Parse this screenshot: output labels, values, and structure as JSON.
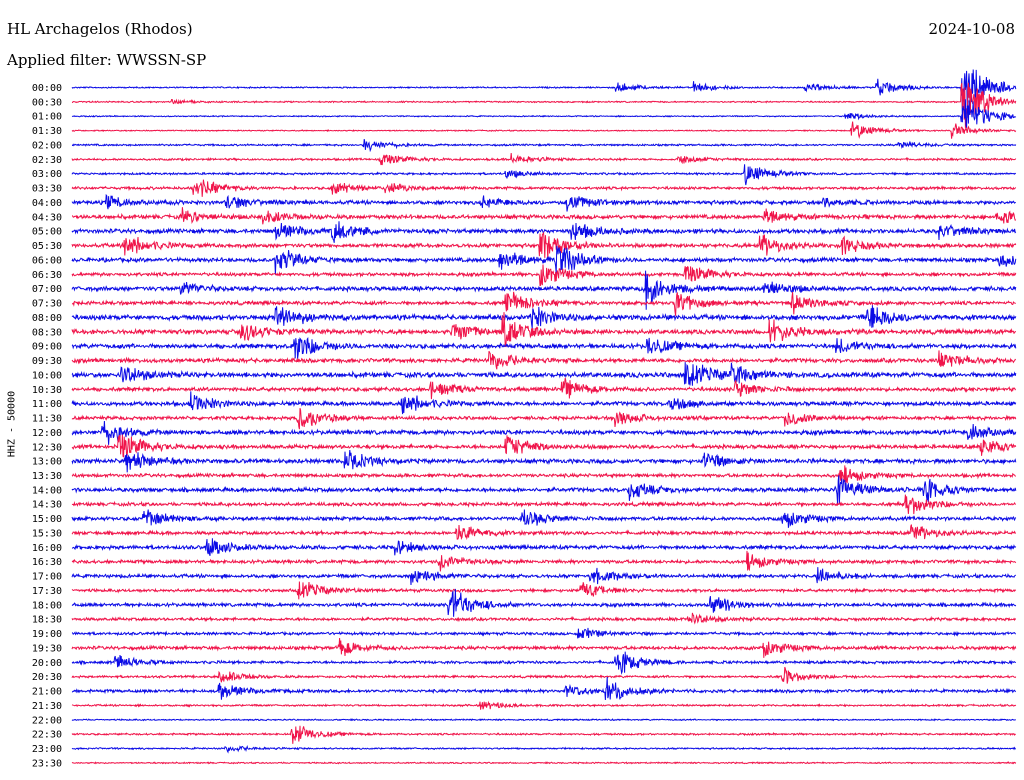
{
  "header": {
    "station": "HL Archagelos (Rhodos)",
    "filter": "Applied filter: WWSSN-SP",
    "date": "2024-10-08"
  },
  "colors": {
    "even_trace": "#0b0be6",
    "odd_trace": "#f0144a",
    "text": "#000000"
  },
  "chart_data": {
    "type": "line",
    "title": "",
    "ylabel": "HHZ - 50000",
    "xlabel": "",
    "time_labels": [
      "00:00",
      "00:30",
      "01:00",
      "01:30",
      "02:00",
      "02:30",
      "03:00",
      "03:30",
      "04:00",
      "04:30",
      "05:00",
      "05:30",
      "06:00",
      "06:30",
      "07:00",
      "07:30",
      "08:00",
      "08:30",
      "09:00",
      "09:30",
      "10:00",
      "10:30",
      "11:00",
      "11:30",
      "12:00",
      "12:30",
      "13:00",
      "13:30",
      "14:00",
      "14:30",
      "15:00",
      "15:30",
      "16:00",
      "16:30",
      "17:00",
      "17:30",
      "18:00",
      "18:30",
      "19:00",
      "19:30",
      "20:00",
      "20:30",
      "21:00",
      "21:30",
      "22:00",
      "22:30",
      "23:00",
      "23:30"
    ],
    "minutes_per_line": 30,
    "noise_level": [
      0.6,
      0.6,
      0.5,
      0.5,
      0.8,
      0.9,
      0.9,
      1.2,
      1.7,
      1.8,
      1.9,
      1.7,
      1.8,
      1.5,
      1.9,
      1.6,
      2.2,
      2.0,
      2.0,
      1.8,
      2.2,
      1.7,
      1.8,
      1.5,
      1.9,
      1.7,
      1.9,
      1.5,
      1.8,
      1.5,
      1.6,
      1.5,
      1.7,
      1.5,
      1.5,
      1.3,
      1.5,
      1.3,
      1.2,
      1.5,
      1.2,
      1.0,
      1.3,
      0.8,
      0.6,
      0.8,
      0.7,
      0.6
    ],
    "events": [
      {
        "line": 0,
        "minute": 17.3,
        "amplitude": 6
      },
      {
        "line": 0,
        "minute": 19.8,
        "amplitude": 6
      },
      {
        "line": 0,
        "minute": 23.3,
        "amplitude": 7
      },
      {
        "line": 0,
        "minute": 25.6,
        "amplitude": 11
      },
      {
        "line": 0,
        "minute": 28.3,
        "amplitude": 45
      },
      {
        "line": 1,
        "minute": 28.3,
        "amplitude": 40
      },
      {
        "line": 1,
        "minute": 3.2,
        "amplitude": 3
      },
      {
        "line": 2,
        "minute": 24.6,
        "amplitude": 5
      },
      {
        "line": 2,
        "minute": 28.3,
        "amplitude": 30
      },
      {
        "line": 3,
        "minute": 24.8,
        "amplitude": 11
      },
      {
        "line": 3,
        "minute": 28.0,
        "amplitude": 8
      },
      {
        "line": 4,
        "minute": 9.3,
        "amplitude": 8
      },
      {
        "line": 4,
        "minute": 26.3,
        "amplitude": 5
      },
      {
        "line": 5,
        "minute": 9.8,
        "amplitude": 9
      },
      {
        "line": 5,
        "minute": 14.0,
        "amplitude": 6
      },
      {
        "line": 5,
        "minute": 19.3,
        "amplitude": 5
      },
      {
        "line": 6,
        "minute": 13.8,
        "amplitude": 5
      },
      {
        "line": 6,
        "minute": 21.4,
        "amplitude": 14
      },
      {
        "line": 7,
        "minute": 3.9,
        "amplitude": 14
      },
      {
        "line": 7,
        "minute": 8.3,
        "amplitude": 8
      },
      {
        "line": 7,
        "minute": 10.0,
        "amplitude": 6
      },
      {
        "line": 8,
        "minute": 1.1,
        "amplitude": 8
      },
      {
        "line": 8,
        "minute": 4.9,
        "amplitude": 9
      },
      {
        "line": 8,
        "minute": 13.0,
        "amplitude": 7
      },
      {
        "line": 8,
        "minute": 15.7,
        "amplitude": 11
      },
      {
        "line": 8,
        "minute": 23.9,
        "amplitude": 6
      },
      {
        "line": 9,
        "minute": 3.5,
        "amplitude": 8
      },
      {
        "line": 9,
        "minute": 6.1,
        "amplitude": 8
      },
      {
        "line": 9,
        "minute": 22.0,
        "amplitude": 10
      },
      {
        "line": 9,
        "minute": 29.4,
        "amplitude": 9
      },
      {
        "line": 10,
        "minute": 6.5,
        "amplitude": 10
      },
      {
        "line": 10,
        "minute": 8.3,
        "amplitude": 12
      },
      {
        "line": 10,
        "minute": 15.9,
        "amplitude": 14
      },
      {
        "line": 10,
        "minute": 27.6,
        "amplitude": 9
      },
      {
        "line": 11,
        "minute": 1.7,
        "amplitude": 14
      },
      {
        "line": 11,
        "minute": 14.9,
        "amplitude": 18
      },
      {
        "line": 11,
        "minute": 21.9,
        "amplitude": 13
      },
      {
        "line": 11,
        "minute": 24.5,
        "amplitude": 10
      },
      {
        "line": 12,
        "minute": 6.5,
        "amplitude": 16
      },
      {
        "line": 12,
        "minute": 13.6,
        "amplitude": 16
      },
      {
        "line": 12,
        "minute": 15.4,
        "amplitude": 22
      },
      {
        "line": 12,
        "minute": 29.5,
        "amplitude": 9
      },
      {
        "line": 13,
        "minute": 14.9,
        "amplitude": 16
      },
      {
        "line": 13,
        "minute": 19.5,
        "amplitude": 14
      },
      {
        "line": 14,
        "minute": 3.5,
        "amplitude": 8
      },
      {
        "line": 14,
        "minute": 18.2,
        "amplitude": 22
      },
      {
        "line": 14,
        "minute": 22.0,
        "amplitude": 12
      },
      {
        "line": 15,
        "minute": 13.8,
        "amplitude": 16
      },
      {
        "line": 15,
        "minute": 19.2,
        "amplitude": 14
      },
      {
        "line": 15,
        "minute": 22.9,
        "amplitude": 12
      },
      {
        "line": 16,
        "minute": 6.5,
        "amplitude": 16
      },
      {
        "line": 16,
        "minute": 14.6,
        "amplitude": 14
      },
      {
        "line": 16,
        "minute": 25.3,
        "amplitude": 18
      },
      {
        "line": 17,
        "minute": 5.4,
        "amplitude": 12
      },
      {
        "line": 17,
        "minute": 12.1,
        "amplitude": 14
      },
      {
        "line": 17,
        "minute": 13.7,
        "amplitude": 18
      },
      {
        "line": 17,
        "minute": 22.2,
        "amplitude": 16
      },
      {
        "line": 18,
        "minute": 7.1,
        "amplitude": 18
      },
      {
        "line": 18,
        "minute": 18.3,
        "amplitude": 12
      },
      {
        "line": 18,
        "minute": 24.3,
        "amplitude": 9
      },
      {
        "line": 19,
        "minute": 13.3,
        "amplitude": 12
      },
      {
        "line": 19,
        "minute": 27.6,
        "amplitude": 11
      },
      {
        "line": 20,
        "minute": 19.5,
        "amplitude": 22
      },
      {
        "line": 20,
        "minute": 1.6,
        "amplitude": 12
      },
      {
        "line": 20,
        "minute": 21.0,
        "amplitude": 10
      },
      {
        "line": 21,
        "minute": 11.4,
        "amplitude": 11
      },
      {
        "line": 21,
        "minute": 15.6,
        "amplitude": 12
      },
      {
        "line": 21,
        "minute": 21.1,
        "amplitude": 10
      },
      {
        "line": 22,
        "minute": 3.8,
        "amplitude": 12
      },
      {
        "line": 22,
        "minute": 10.5,
        "amplitude": 14
      },
      {
        "line": 22,
        "minute": 19.0,
        "amplitude": 8
      },
      {
        "line": 23,
        "minute": 7.2,
        "amplitude": 16
      },
      {
        "line": 23,
        "minute": 17.3,
        "amplitude": 10
      },
      {
        "line": 23,
        "minute": 22.7,
        "amplitude": 11
      },
      {
        "line": 24,
        "minute": 1.0,
        "amplitude": 14
      },
      {
        "line": 24,
        "minute": 28.5,
        "amplitude": 12
      },
      {
        "line": 25,
        "minute": 1.5,
        "amplitude": 20
      },
      {
        "line": 25,
        "minute": 13.8,
        "amplitude": 16
      },
      {
        "line": 25,
        "minute": 28.9,
        "amplitude": 10
      },
      {
        "line": 26,
        "minute": 1.7,
        "amplitude": 14
      },
      {
        "line": 26,
        "minute": 8.7,
        "amplitude": 12
      },
      {
        "line": 26,
        "minute": 20.1,
        "amplitude": 10
      },
      {
        "line": 27,
        "minute": 24.4,
        "amplitude": 12
      },
      {
        "line": 28,
        "minute": 17.7,
        "amplitude": 12
      },
      {
        "line": 28,
        "minute": 24.3,
        "amplitude": 18
      },
      {
        "line": 28,
        "minute": 27.1,
        "amplitude": 14
      },
      {
        "line": 29,
        "minute": 26.5,
        "amplitude": 16
      },
      {
        "line": 30,
        "minute": 2.3,
        "amplitude": 12
      },
      {
        "line": 30,
        "minute": 14.3,
        "amplitude": 12
      },
      {
        "line": 30,
        "minute": 22.6,
        "amplitude": 12
      },
      {
        "line": 31,
        "minute": 12.2,
        "amplitude": 12
      },
      {
        "line": 31,
        "minute": 26.7,
        "amplitude": 10
      },
      {
        "line": 32,
        "minute": 4.3,
        "amplitude": 12
      },
      {
        "line": 32,
        "minute": 10.3,
        "amplitude": 8
      },
      {
        "line": 33,
        "minute": 11.7,
        "amplitude": 10
      },
      {
        "line": 33,
        "minute": 21.5,
        "amplitude": 10
      },
      {
        "line": 34,
        "minute": 10.8,
        "amplitude": 12
      },
      {
        "line": 34,
        "minute": 16.5,
        "amplitude": 10
      },
      {
        "line": 34,
        "minute": 23.7,
        "amplitude": 9
      },
      {
        "line": 35,
        "minute": 7.2,
        "amplitude": 14
      },
      {
        "line": 35,
        "minute": 16.2,
        "amplitude": 10
      },
      {
        "line": 36,
        "minute": 12.0,
        "amplitude": 22
      },
      {
        "line": 36,
        "minute": 20.3,
        "amplitude": 12
      },
      {
        "line": 37,
        "minute": 19.6,
        "amplitude": 8
      },
      {
        "line": 38,
        "minute": 16.1,
        "amplitude": 8
      },
      {
        "line": 39,
        "minute": 8.5,
        "amplitude": 10
      },
      {
        "line": 39,
        "minute": 22.0,
        "amplitude": 10
      },
      {
        "line": 40,
        "minute": 17.3,
        "amplitude": 16
      },
      {
        "line": 40,
        "minute": 1.4,
        "amplitude": 8
      },
      {
        "line": 41,
        "minute": 4.7,
        "amplitude": 8
      },
      {
        "line": 41,
        "minute": 22.6,
        "amplitude": 10
      },
      {
        "line": 42,
        "minute": 4.7,
        "amplitude": 10
      },
      {
        "line": 42,
        "minute": 17.0,
        "amplitude": 14
      },
      {
        "line": 42,
        "minute": 15.7,
        "amplitude": 8
      },
      {
        "line": 43,
        "minute": 13.0,
        "amplitude": 6
      },
      {
        "line": 45,
        "minute": 7.0,
        "amplitude": 14
      },
      {
        "line": 46,
        "minute": 4.9,
        "amplitude": 4
      }
    ]
  }
}
